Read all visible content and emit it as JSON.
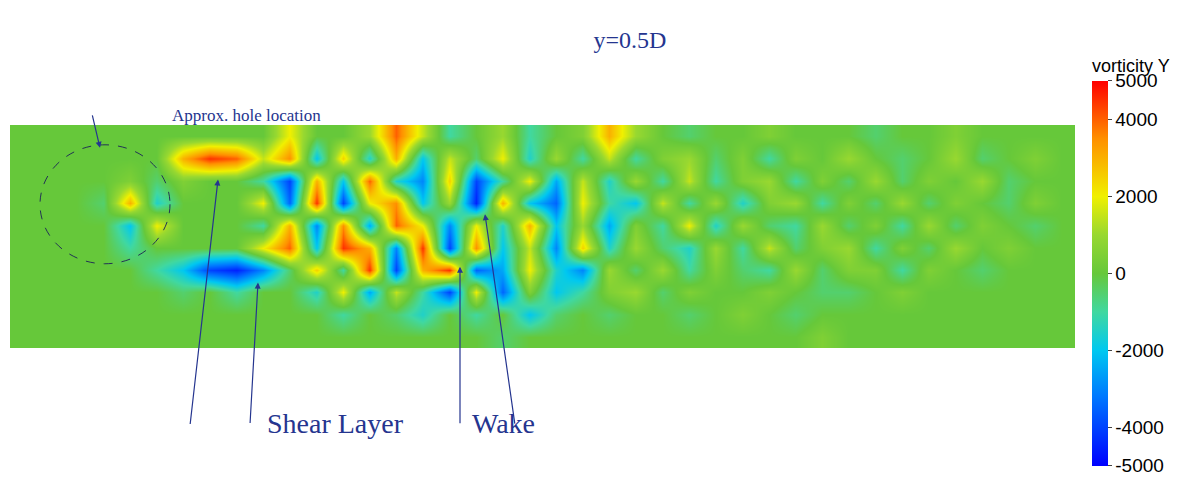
{
  "chart_data": {
    "type": "heatmap",
    "title": "y=0.5D",
    "tick_labels": false,
    "colorbar_title": "vorticity Y",
    "zlim": [
      -5000,
      5000
    ],
    "zticks": [
      5000,
      4000,
      2000,
      0,
      -2000,
      -4000,
      -5000
    ],
    "annotations": [
      "Approx. hole location",
      "Shear Layer",
      "Wake"
    ],
    "z": [
      [
        0,
        0,
        0,
        0,
        0,
        0,
        0,
        0,
        0,
        0,
        2000,
        0,
        0,
        1000,
        4000,
        1500,
        -1000,
        0,
        1000,
        -1000,
        0,
        500,
        3000,
        1000,
        0,
        -500,
        0,
        0,
        500,
        0,
        0,
        0,
        -500,
        0,
        0,
        500,
        0,
        0,
        0,
        0
      ],
      [
        0,
        0,
        0,
        0,
        0,
        0,
        3000,
        4500,
        4000,
        1500,
        3500,
        -2000,
        2500,
        -1500,
        3000,
        -2000,
        1500,
        -500,
        2000,
        -1500,
        1000,
        -1000,
        1500,
        -1000,
        500,
        1000,
        -500,
        500,
        -1000,
        500,
        0,
        1000,
        0,
        -500,
        0,
        1000,
        -500,
        0,
        500,
        0
      ],
      [
        0,
        0,
        0,
        0,
        500,
        -500,
        500,
        0,
        0,
        -1000,
        -4000,
        3000,
        -2000,
        4000,
        -1500,
        -3000,
        2500,
        -4000,
        -1000,
        2000,
        -2500,
        1500,
        -1500,
        1000,
        -1000,
        1500,
        -1000,
        500,
        1000,
        -1000,
        500,
        -500,
        1000,
        -500,
        500,
        0,
        1000,
        -500,
        0,
        0
      ],
      [
        0,
        0,
        0,
        -500,
        3000,
        -1500,
        0,
        0,
        0,
        2000,
        -3500,
        4500,
        -4000,
        2000,
        3500,
        -2000,
        1000,
        -4500,
        3000,
        -2000,
        -3500,
        2000,
        -1000,
        -2000,
        1500,
        -1000,
        1000,
        -1500,
        500,
        1000,
        -1000,
        500,
        -500,
        1000,
        -500,
        500,
        0,
        -500,
        500,
        0
      ],
      [
        0,
        0,
        0,
        0,
        -2000,
        2000,
        0,
        0,
        0,
        -1000,
        3000,
        -3000,
        3500,
        -2500,
        4000,
        2000,
        -3000,
        2000,
        -1500,
        3000,
        -2000,
        1000,
        -2500,
        500,
        -1000,
        2000,
        -1500,
        1000,
        -500,
        -1000,
        1000,
        -500,
        500,
        -1000,
        1000,
        -500,
        500,
        0,
        -500,
        0
      ],
      [
        0,
        0,
        0,
        0,
        -1000,
        0,
        0,
        0,
        0,
        2000,
        4000,
        -2000,
        4500,
        3000,
        -3000,
        4500,
        -4000,
        3500,
        -2000,
        1500,
        -3000,
        2500,
        -1500,
        1000,
        -500,
        -1500,
        1000,
        -1000,
        1500,
        -500,
        500,
        1000,
        -1000,
        500,
        -500,
        1000,
        0,
        500,
        0,
        0
      ],
      [
        0,
        0,
        0,
        0,
        0,
        -1000,
        -2000,
        -4000,
        -4500,
        -3000,
        -500,
        2500,
        -1000,
        4500,
        -4000,
        3000,
        4500,
        -3500,
        -2500,
        2000,
        -1500,
        -3000,
        1000,
        -500,
        1000,
        -1000,
        500,
        -500,
        -1000,
        1000,
        -500,
        500,
        500,
        -1000,
        500,
        0,
        -500,
        0,
        0,
        0
      ],
      [
        0,
        0,
        0,
        0,
        0,
        0,
        -500,
        0,
        -1000,
        0,
        0,
        -1500,
        2000,
        -2500,
        1500,
        -1000,
        -4000,
        2000,
        -3500,
        500,
        -2000,
        -1000,
        500,
        1000,
        -500,
        500,
        0,
        0,
        500,
        0,
        -500,
        -500,
        0,
        500,
        0,
        0,
        0,
        0,
        0,
        0
      ],
      [
        0,
        0,
        0,
        0,
        0,
        0,
        0,
        0,
        0,
        0,
        0,
        0,
        -1000,
        0,
        -500,
        -1500,
        0,
        -1000,
        0,
        -2000,
        -500,
        0,
        -500,
        0,
        0,
        -500,
        0,
        500,
        0,
        -500,
        0,
        0,
        0,
        0,
        0,
        0,
        0,
        0,
        0,
        0
      ],
      [
        0,
        0,
        0,
        0,
        0,
        0,
        0,
        0,
        0,
        0,
        0,
        0,
        0,
        0,
        0,
        0,
        0,
        0,
        -500,
        0,
        0,
        0,
        0,
        0,
        0,
        0,
        0,
        0,
        0,
        0,
        500,
        0,
        0,
        0,
        0,
        0,
        0,
        0,
        0,
        0
      ]
    ]
  }
}
